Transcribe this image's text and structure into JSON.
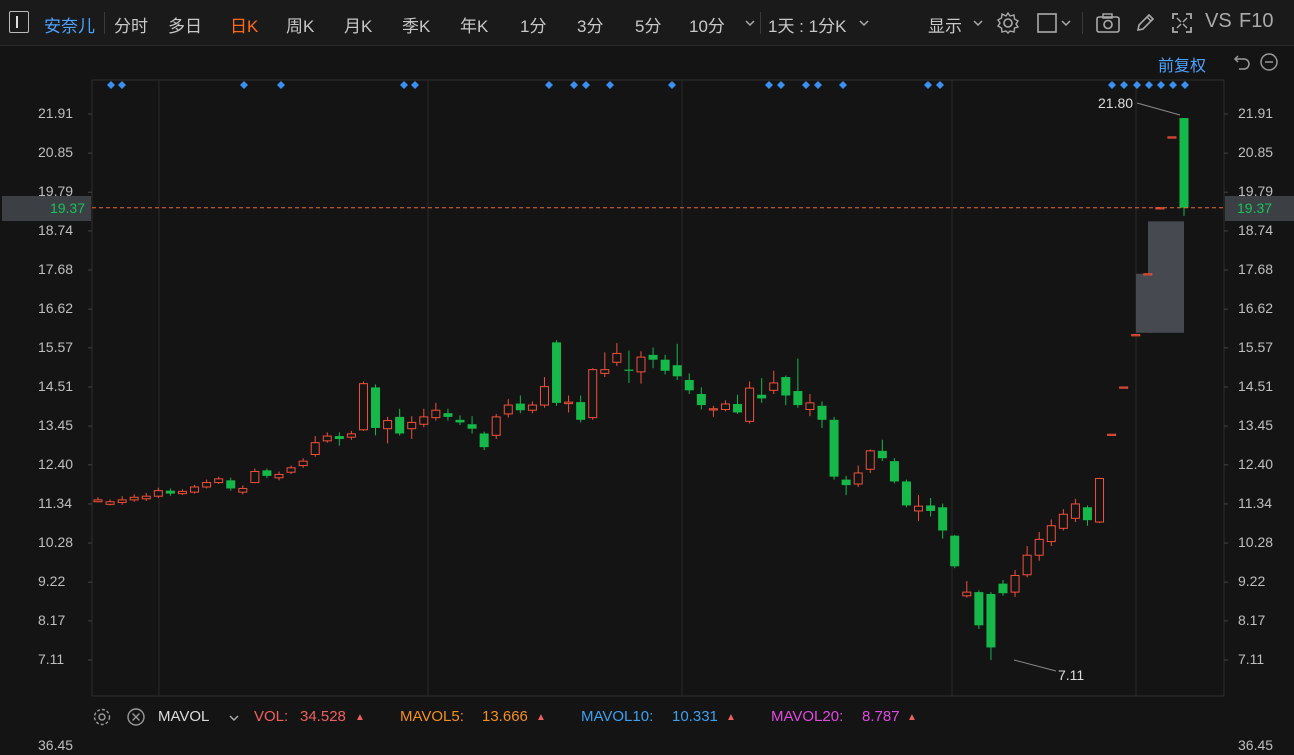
{
  "toolbar": {
    "symbol": "安奈儿",
    "periods": [
      "分时",
      "多日",
      "日K",
      "周K",
      "月K",
      "季K",
      "年K",
      "1分",
      "3分",
      "5分",
      "10分"
    ],
    "active_period": "日K",
    "interval_select": "1天 : 1分K",
    "display_label": "显示",
    "vs_label": "VS",
    "f10_label": "F10"
  },
  "chart": {
    "adjust_label": "前复权",
    "y_ticks": [
      "21.91",
      "20.85",
      "19.79",
      "18.74",
      "17.68",
      "16.62",
      "15.57",
      "14.51",
      "13.45",
      "12.40",
      "11.34",
      "10.28",
      "9.22",
      "8.17",
      "7.11"
    ],
    "current_price": "19.37",
    "high_label": "21.80",
    "low_label": "7.11",
    "colors": {
      "up": "#f0503c",
      "down": "#16b84a",
      "grid": "#2a2a2a",
      "marker": "#3b8ff0",
      "current_line": "#e8672a"
    }
  },
  "chart_data": {
    "type": "candlestick",
    "title": "",
    "ylim": [
      6.3,
      23.0
    ],
    "current_price": 19.37,
    "high": 21.8,
    "low": 7.11,
    "candles": [
      [
        11.4,
        11.45,
        11.52,
        11.38
      ],
      [
        11.33,
        11.4,
        11.46,
        11.3
      ],
      [
        11.38,
        11.45,
        11.55,
        11.32
      ],
      [
        11.45,
        11.52,
        11.6,
        11.4
      ],
      [
        11.48,
        11.55,
        11.64,
        11.42
      ],
      [
        11.55,
        11.7,
        11.78,
        11.5
      ],
      [
        11.7,
        11.62,
        11.76,
        11.56
      ],
      [
        11.62,
        11.68,
        11.74,
        11.58
      ],
      [
        11.66,
        11.8,
        11.86,
        11.62
      ],
      [
        11.8,
        11.92,
        12.0,
        11.76
      ],
      [
        11.92,
        12.02,
        12.08,
        11.88
      ],
      [
        11.98,
        11.76,
        12.05,
        11.7
      ],
      [
        11.66,
        11.76,
        11.84,
        11.6
      ],
      [
        11.92,
        12.22,
        12.3,
        11.9
      ],
      [
        12.25,
        12.1,
        12.3,
        12.04
      ],
      [
        12.05,
        12.14,
        12.22,
        11.98
      ],
      [
        12.2,
        12.32,
        12.38,
        12.15
      ],
      [
        12.38,
        12.5,
        12.58,
        12.32
      ],
      [
        12.68,
        13.0,
        13.18,
        12.62
      ],
      [
        13.05,
        13.18,
        13.28,
        13.0
      ],
      [
        13.18,
        13.1,
        13.28,
        12.92
      ],
      [
        13.15,
        13.24,
        13.32,
        13.08
      ],
      [
        13.35,
        14.6,
        14.66,
        13.32
      ],
      [
        14.5,
        13.4,
        14.58,
        13.2
      ],
      [
        13.38,
        13.6,
        13.7,
        12.98
      ],
      [
        13.7,
        13.25,
        13.92,
        13.2
      ],
      [
        13.38,
        13.55,
        13.72,
        13.1
      ],
      [
        13.5,
        13.7,
        13.92,
        13.42
      ],
      [
        13.68,
        13.88,
        14.08,
        13.6
      ],
      [
        13.8,
        13.7,
        13.92,
        13.6
      ],
      [
        13.62,
        13.55,
        13.74,
        13.48
      ],
      [
        13.5,
        13.38,
        13.72,
        13.25
      ],
      [
        13.25,
        12.88,
        13.3,
        12.8
      ],
      [
        13.2,
        13.7,
        13.78,
        13.1
      ],
      [
        13.78,
        14.02,
        14.18,
        13.68
      ],
      [
        14.06,
        13.88,
        14.28,
        13.8
      ],
      [
        13.88,
        14.02,
        14.12,
        13.8
      ],
      [
        14.02,
        14.52,
        14.78,
        13.95
      ],
      [
        15.72,
        14.08,
        15.78,
        14.0
      ],
      [
        14.06,
        14.1,
        14.28,
        13.82
      ],
      [
        14.1,
        13.62,
        14.28,
        13.55
      ],
      [
        13.68,
        14.98,
        15.02,
        13.62
      ],
      [
        14.88,
        14.98,
        15.45,
        14.78
      ],
      [
        15.18,
        15.42,
        15.7,
        15.08
      ],
      [
        14.98,
        14.95,
        15.5,
        14.62
      ],
      [
        14.92,
        15.32,
        15.48,
        14.6
      ],
      [
        15.38,
        15.25,
        15.58,
        15.02
      ],
      [
        15.25,
        14.95,
        15.38,
        14.85
      ],
      [
        15.1,
        14.8,
        15.68,
        14.7
      ],
      [
        14.7,
        14.42,
        14.88,
        14.32
      ],
      [
        14.32,
        14.02,
        14.5,
        13.9
      ],
      [
        13.92,
        13.92,
        14.0,
        13.7
      ],
      [
        13.9,
        14.05,
        14.15,
        13.85
      ],
      [
        14.05,
        13.82,
        14.3,
        13.78
      ],
      [
        13.58,
        14.48,
        14.66,
        13.52
      ],
      [
        14.3,
        14.2,
        14.75,
        14.08
      ],
      [
        14.42,
        14.62,
        14.95,
        14.32
      ],
      [
        14.78,
        14.28,
        14.82,
        14.02
      ],
      [
        14.4,
        14.02,
        15.28,
        13.95
      ],
      [
        13.9,
        14.08,
        14.32,
        13.72
      ],
      [
        14.0,
        13.62,
        14.12,
        13.4
      ],
      [
        13.62,
        12.08,
        13.7,
        12.0
      ],
      [
        12.0,
        11.85,
        12.1,
        11.58
      ],
      [
        11.88,
        12.18,
        12.38,
        11.8
      ],
      [
        12.28,
        12.78,
        12.82,
        12.18
      ],
      [
        12.78,
        12.58,
        13.08,
        12.5
      ],
      [
        12.5,
        11.95,
        12.58,
        11.9
      ],
      [
        11.95,
        11.3,
        12.0,
        11.25
      ],
      [
        11.15,
        11.28,
        11.58,
        10.88
      ],
      [
        11.3,
        11.15,
        11.5,
        11.0
      ],
      [
        11.25,
        10.62,
        11.35,
        10.4
      ],
      [
        10.48,
        9.65,
        10.5,
        9.6
      ],
      [
        8.85,
        8.95,
        9.25,
        8.8
      ],
      [
        8.95,
        8.05,
        9.0,
        7.95
      ],
      [
        8.9,
        7.45,
        8.95,
        7.11
      ],
      [
        9.18,
        8.92,
        9.28,
        8.85
      ],
      [
        8.95,
        9.4,
        9.55,
        8.82
      ],
      [
        9.42,
        9.95,
        10.2,
        9.35
      ],
      [
        9.95,
        10.38,
        10.58,
        9.8
      ],
      [
        10.32,
        10.75,
        10.92,
        10.2
      ],
      [
        10.68,
        11.06,
        11.2,
        10.62
      ],
      [
        10.95,
        11.34,
        11.48,
        10.85
      ],
      [
        11.25,
        10.9,
        11.3,
        10.75
      ],
      [
        10.85,
        12.03,
        12.05,
        10.82
      ],
      [
        13.23,
        13.23,
        13.23,
        13.23
      ],
      [
        14.51,
        14.51,
        14.51,
        14.51
      ],
      [
        15.93,
        15.93,
        15.93,
        15.93
      ],
      [
        17.58,
        17.58,
        17.58,
        17.58
      ],
      [
        19.37,
        19.37,
        19.37,
        19.37
      ],
      [
        21.29,
        21.29,
        21.29,
        21.29
      ],
      [
        21.8,
        19.37,
        21.8,
        19.15
      ]
    ],
    "gap_box": {
      "low": 15.98,
      "high": 19.0
    }
  },
  "indicator": {
    "name": "MAVOL",
    "vol_label": "VOL:",
    "vol_value": "34.528",
    "ma5_label": "MAVOL5:",
    "ma5_value": "13.666",
    "ma10_label": "MAVOL10:",
    "ma10_value": "10.331",
    "ma20_label": "MAVOL20:",
    "ma20_value": "8.787",
    "axis_value": "36.45"
  }
}
